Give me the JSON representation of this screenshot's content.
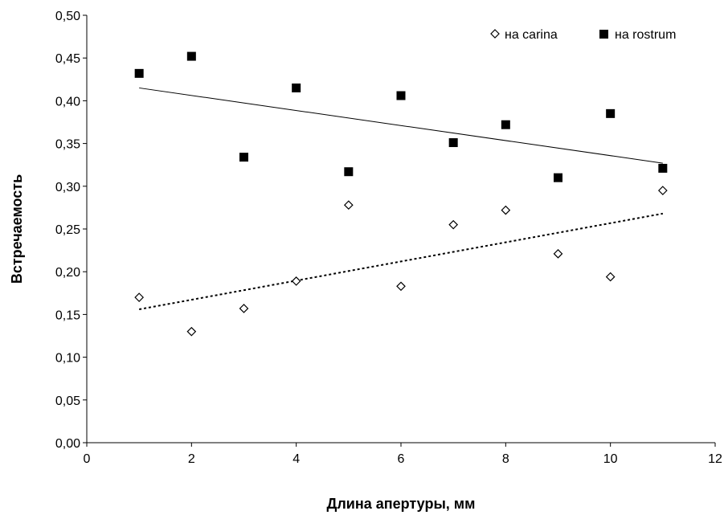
{
  "chart_data": {
    "type": "scatter",
    "xlabel": "Длина апертуры, мм",
    "ylabel": "Встречаемость",
    "xlim": [
      0,
      12
    ],
    "ylim": [
      0,
      0.5
    ],
    "x_ticks": [
      "0",
      "2",
      "4",
      "6",
      "8",
      "10",
      "12"
    ],
    "y_ticks": [
      "0,00",
      "0,05",
      "0,10",
      "0,15",
      "0,20",
      "0,25",
      "0,30",
      "0,35",
      "0,40",
      "0,45",
      "0,50"
    ],
    "grid": false,
    "legend_position": "top-right",
    "series": [
      {
        "name": "на carina",
        "marker": "open-diamond",
        "color": "#000000",
        "x": [
          1,
          2,
          3,
          4,
          5,
          6,
          7,
          8,
          9,
          10,
          11
        ],
        "y": [
          0.17,
          0.13,
          0.157,
          0.189,
          0.278,
          0.183,
          0.255,
          0.272,
          0.221,
          0.194,
          0.295
        ],
        "trendline": {
          "style": "dotted",
          "x": [
            1,
            11
          ],
          "y": [
            0.156,
            0.268
          ]
        }
      },
      {
        "name": "на rostrum",
        "marker": "filled-square",
        "color": "#000000",
        "x": [
          1,
          2,
          3,
          4,
          5,
          6,
          7,
          8,
          9,
          10,
          11
        ],
        "y": [
          0.432,
          0.452,
          0.334,
          0.415,
          0.317,
          0.406,
          0.351,
          0.372,
          0.31,
          0.385,
          0.321
        ],
        "trendline": {
          "style": "solid",
          "x": [
            1,
            11
          ],
          "y": [
            0.415,
            0.327
          ]
        }
      }
    ]
  }
}
